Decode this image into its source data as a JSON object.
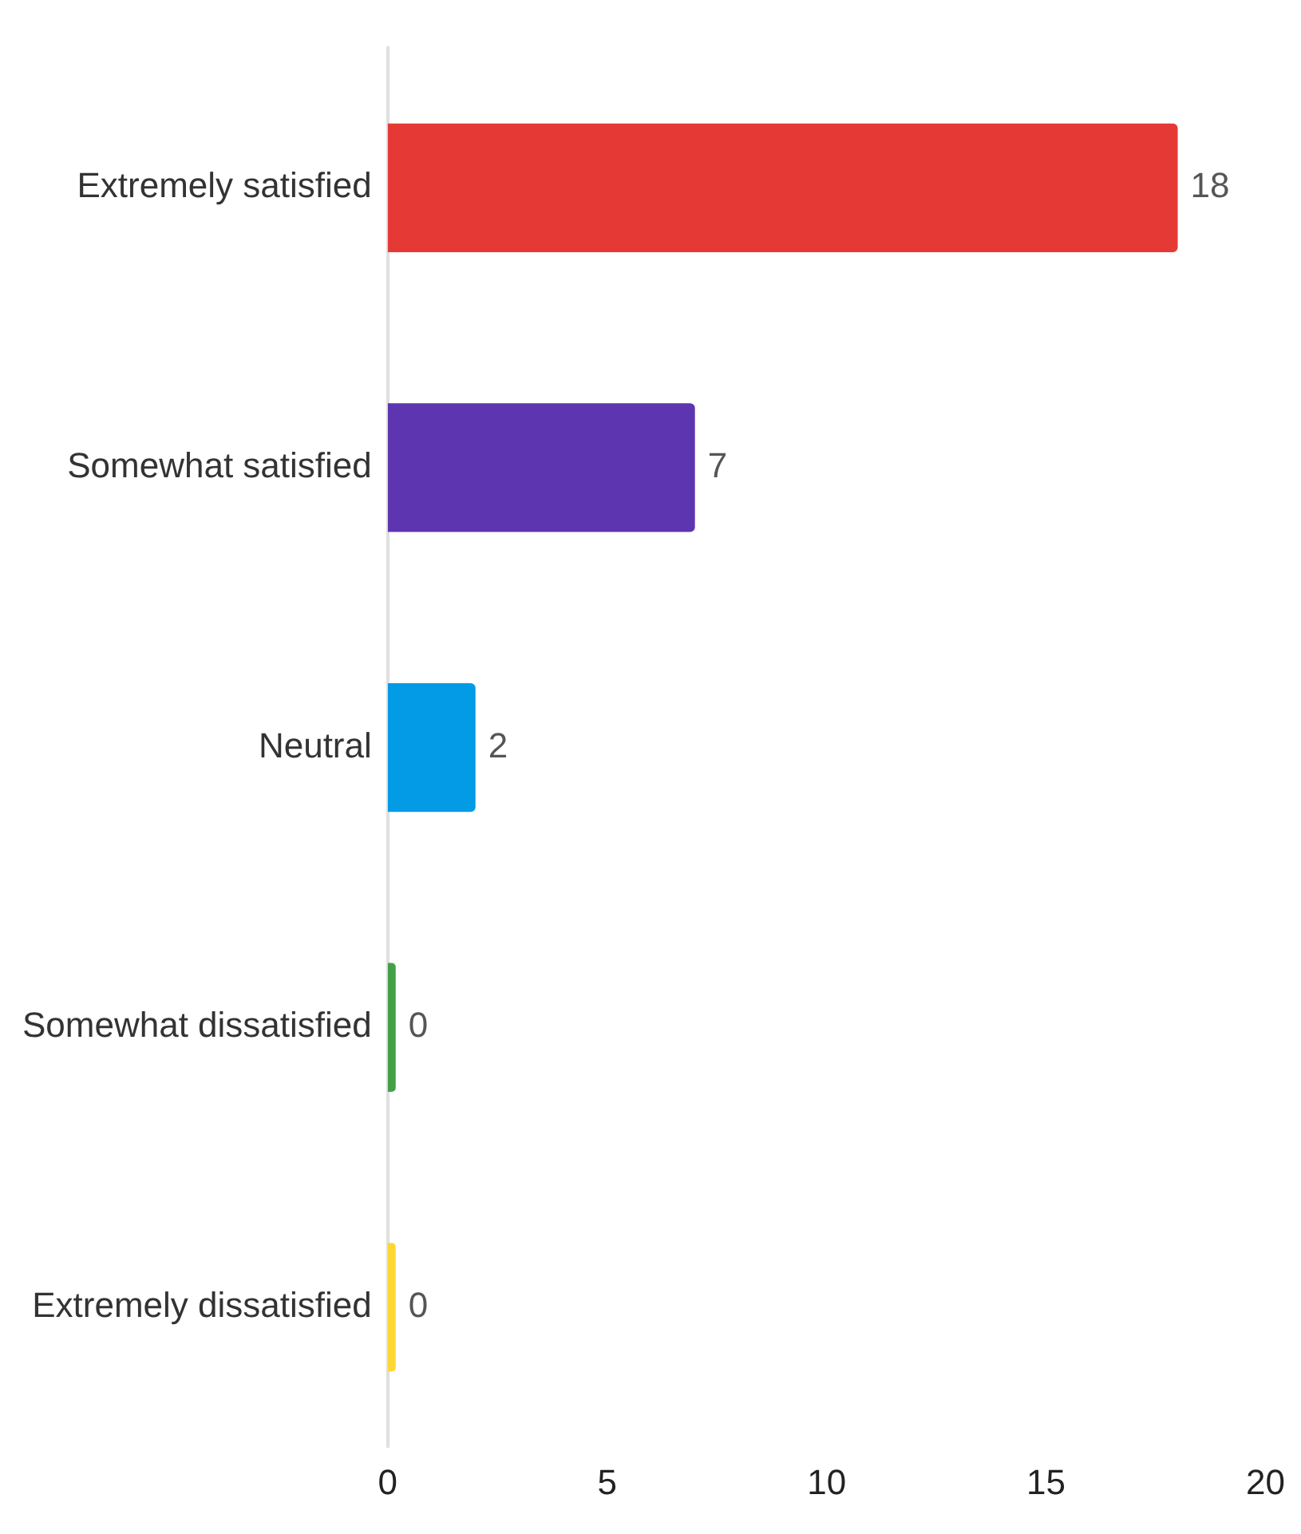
{
  "chart_data": {
    "type": "bar",
    "orientation": "horizontal",
    "categories": [
      "Extremely satisfied",
      "Somewhat satisfied",
      "Neutral",
      "Somewhat dissatisfied",
      "Extremely dissatisfied"
    ],
    "values": [
      18,
      7,
      2,
      0,
      0
    ],
    "colors": [
      "#e53935",
      "#5e35b1",
      "#039be5",
      "#43a047",
      "#fdd835"
    ],
    "xlim": [
      0,
      20
    ],
    "xticks": [
      0,
      5,
      10,
      15,
      20
    ],
    "data_labels": true
  }
}
